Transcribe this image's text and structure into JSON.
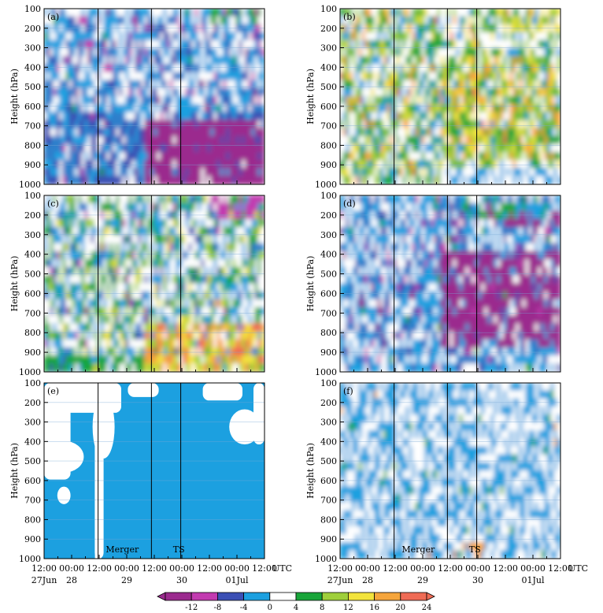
{
  "chart_data": {
    "type": "heatmap",
    "description_type": "time-height contour panels",
    "ylabel": "Height (hPa)",
    "y_ticks": [
      "100",
      "200",
      "300",
      "400",
      "500",
      "600",
      "700",
      "800",
      "900",
      "1000"
    ],
    "y_range": [
      100,
      1000
    ],
    "x_time_labels": [
      "12:00",
      "00:00",
      "12:00",
      "00:00",
      "12:00",
      "00:00",
      "12:00",
      "00:00",
      "12:00"
    ],
    "x_date_labels": [
      "27Jun",
      "28",
      "29",
      "30",
      "01Jul"
    ],
    "x_unit": "UTC",
    "event_labels": [
      "Merger",
      "TS"
    ],
    "colorbar": {
      "ticks": [
        "-12",
        "-8",
        "-4",
        "0",
        "4",
        "8",
        "12",
        "16",
        "20",
        "24"
      ],
      "colors": [
        "#9b2a8e",
        "#c23ab0",
        "#3b4fb4",
        "#1ca0e0",
        "#ffffff",
        "#19a53a",
        "#9fcf3b",
        "#f2e33c",
        "#f5a53c",
        "#ef6b55"
      ]
    },
    "panels": [
      {
        "label": "(a)",
        "tone": "negative"
      },
      {
        "label": "(b)",
        "tone": "positive"
      },
      {
        "label": "(c)",
        "tone": "mixed-positive"
      },
      {
        "label": "(d)",
        "tone": "negative"
      },
      {
        "label": "(e)",
        "tone": "weak-negative"
      },
      {
        "label": "(f)",
        "tone": "weak-mixed"
      }
    ]
  }
}
